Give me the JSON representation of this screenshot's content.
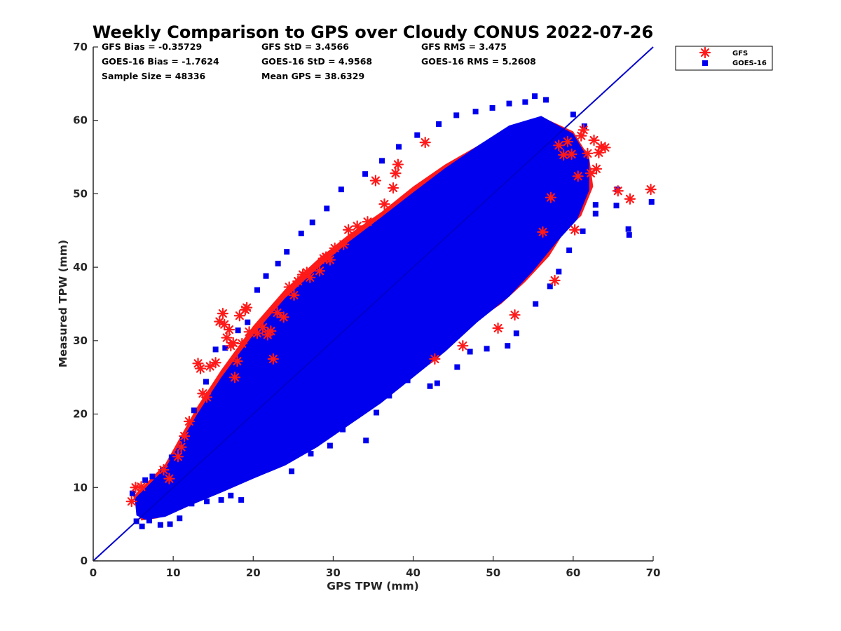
{
  "chart_data": {
    "type": "scatter",
    "title": "Weekly Comparison to GPS over Cloudy CONUS 2022-07-26",
    "xlabel": "GPS TPW (mm)",
    "ylabel": "Measured TPW (mm)",
    "xlim": [
      0,
      70
    ],
    "ylim": [
      0,
      70
    ],
    "xticks": [
      "0",
      "10",
      "20",
      "30",
      "40",
      "50",
      "60",
      "70"
    ],
    "yticks": [
      "0",
      "10",
      "20",
      "30",
      "40",
      "50",
      "60",
      "70"
    ],
    "grid": false,
    "legend_position": "outside-top-right",
    "reference_line": {
      "x": [
        0,
        70
      ],
      "y": [
        0,
        70
      ],
      "color": "#0000cc"
    },
    "stats": {
      "gfs_bias": "GFS Bias = -0.35729",
      "gfs_std": "GFS StD = 3.4566",
      "gfs_rms": "GFS RMS = 3.475",
      "goes_bias": "GOES-16 Bias = -1.7624",
      "goes_std": "GOES-16 StD = 4.9568",
      "goes_rms": "GOES-16 RMS = 5.2608",
      "sample_size": "Sample Size = 48336",
      "mean_gps": "Mean GPS = 38.6329"
    },
    "series": [
      {
        "name": "GFS",
        "marker": "asterisk",
        "color": "#ff1a1a",
        "points": [
          [
            4.8,
            8.1
          ],
          [
            5.3,
            10.0
          ],
          [
            6.0,
            10.1
          ],
          [
            8.8,
            12.4
          ],
          [
            9.5,
            11.2
          ],
          [
            10.6,
            14.2
          ],
          [
            11.0,
            15.5
          ],
          [
            11.4,
            17.0
          ],
          [
            12.0,
            19.0
          ],
          [
            13.1,
            26.9
          ],
          [
            13.4,
            26.2
          ],
          [
            13.7,
            22.8
          ],
          [
            14.2,
            22.3
          ],
          [
            14.6,
            26.5
          ],
          [
            15.3,
            27.0
          ],
          [
            15.8,
            32.6
          ],
          [
            16.2,
            33.7
          ],
          [
            16.4,
            32.2
          ],
          [
            16.7,
            30.4
          ],
          [
            17.0,
            31.5
          ],
          [
            17.2,
            29.3
          ],
          [
            17.5,
            29.7
          ],
          [
            17.7,
            25.0
          ],
          [
            18.0,
            27.2
          ],
          [
            18.3,
            33.4
          ],
          [
            18.6,
            29.6
          ],
          [
            19.0,
            34.2
          ],
          [
            19.2,
            34.5
          ],
          [
            19.5,
            31.2
          ],
          [
            20.5,
            31.0
          ],
          [
            21.2,
            31.8
          ],
          [
            21.8,
            30.8
          ],
          [
            22.2,
            31.3
          ],
          [
            22.5,
            27.5
          ],
          [
            23.0,
            33.8
          ],
          [
            23.8,
            33.2
          ],
          [
            24.5,
            37.3
          ],
          [
            25.1,
            36.2
          ],
          [
            25.6,
            38.1
          ],
          [
            26.2,
            39.0
          ],
          [
            26.7,
            39.3
          ],
          [
            27.1,
            38.6
          ],
          [
            28.3,
            39.5
          ],
          [
            28.8,
            41.2
          ],
          [
            29.1,
            41.4
          ],
          [
            29.6,
            41.0
          ],
          [
            30.2,
            42.6
          ],
          [
            31.3,
            43.1
          ],
          [
            31.9,
            45.1
          ],
          [
            33.0,
            45.6
          ],
          [
            34.3,
            46.2
          ],
          [
            35.3,
            51.8
          ],
          [
            36.4,
            48.6
          ],
          [
            37.5,
            50.8
          ],
          [
            37.8,
            52.8
          ],
          [
            38.1,
            54.0
          ],
          [
            41.5,
            57.0
          ],
          [
            42.7,
            27.5
          ],
          [
            46.2,
            29.3
          ],
          [
            50.6,
            31.7
          ],
          [
            52.7,
            33.5
          ],
          [
            56.2,
            44.8
          ],
          [
            57.7,
            38.2
          ],
          [
            57.2,
            49.5
          ],
          [
            58.2,
            56.6
          ],
          [
            58.8,
            55.3
          ],
          [
            59.3,
            57.1
          ],
          [
            59.8,
            55.4
          ],
          [
            60.2,
            45.1
          ],
          [
            60.6,
            52.4
          ],
          [
            61.0,
            57.9
          ],
          [
            61.3,
            58.7
          ],
          [
            61.8,
            55.5
          ],
          [
            62.2,
            52.8
          ],
          [
            62.6,
            57.3
          ],
          [
            62.9,
            53.4
          ],
          [
            63.2,
            55.6
          ],
          [
            63.5,
            56.4
          ],
          [
            64.0,
            56.3
          ],
          [
            65.6,
            50.4
          ],
          [
            67.1,
            49.3
          ],
          [
            69.7,
            50.6
          ]
        ]
      },
      {
        "name": "GOES-16",
        "marker": "square",
        "color": "#0000ee",
        "points": [
          [
            4.9,
            9.2
          ],
          [
            5.4,
            5.4
          ],
          [
            6.1,
            4.7
          ],
          [
            7.0,
            5.5
          ],
          [
            8.4,
            4.9
          ],
          [
            9.6,
            5.0
          ],
          [
            10.8,
            5.8
          ],
          [
            12.3,
            7.8
          ],
          [
            14.2,
            8.1
          ],
          [
            16.0,
            8.3
          ],
          [
            17.2,
            8.9
          ],
          [
            18.5,
            8.3
          ],
          [
            20.0,
            12.0
          ],
          [
            22.3,
            13.8
          ],
          [
            24.8,
            12.2
          ],
          [
            27.2,
            14.6
          ],
          [
            29.6,
            15.7
          ],
          [
            31.2,
            17.9
          ],
          [
            34.1,
            16.4
          ],
          [
            35.4,
            20.2
          ],
          [
            37.0,
            22.5
          ],
          [
            39.3,
            24.6
          ],
          [
            42.1,
            23.8
          ],
          [
            43.0,
            24.2
          ],
          [
            45.5,
            26.4
          ],
          [
            47.1,
            28.5
          ],
          [
            49.2,
            28.9
          ],
          [
            51.8,
            29.3
          ],
          [
            52.9,
            31.0
          ],
          [
            55.3,
            35.0
          ],
          [
            57.1,
            37.4
          ],
          [
            58.2,
            39.4
          ],
          [
            59.5,
            42.3
          ],
          [
            61.2,
            44.9
          ],
          [
            62.8,
            47.3
          ],
          [
            65.4,
            48.4
          ],
          [
            66.9,
            45.2
          ],
          [
            67.0,
            44.4
          ],
          [
            69.8,
            48.9
          ],
          [
            65.5,
            50.6
          ],
          [
            62.8,
            48.5
          ],
          [
            61.4,
            59.2
          ],
          [
            60.0,
            60.8
          ],
          [
            56.6,
            62.8
          ],
          [
            55.2,
            63.3
          ],
          [
            54.0,
            62.5
          ],
          [
            52.0,
            62.3
          ],
          [
            49.9,
            61.7
          ],
          [
            47.8,
            61.2
          ],
          [
            45.4,
            60.7
          ],
          [
            43.2,
            59.5
          ],
          [
            40.5,
            58.0
          ],
          [
            38.2,
            56.4
          ],
          [
            36.1,
            54.5
          ],
          [
            34.0,
            52.7
          ],
          [
            31.0,
            50.6
          ],
          [
            29.2,
            48.0
          ],
          [
            27.4,
            46.1
          ],
          [
            26.0,
            44.6
          ],
          [
            24.2,
            42.1
          ],
          [
            23.1,
            40.5
          ],
          [
            21.6,
            38.8
          ],
          [
            20.5,
            36.9
          ],
          [
            19.3,
            32.5
          ],
          [
            18.1,
            31.4
          ],
          [
            16.5,
            29.0
          ],
          [
            15.3,
            28.8
          ],
          [
            14.1,
            24.4
          ],
          [
            12.6,
            20.5
          ],
          [
            11.2,
            16.7
          ],
          [
            9.8,
            14.1
          ],
          [
            8.7,
            12.4
          ],
          [
            7.4,
            11.5
          ],
          [
            6.5,
            11.0
          ]
        ]
      }
    ]
  }
}
